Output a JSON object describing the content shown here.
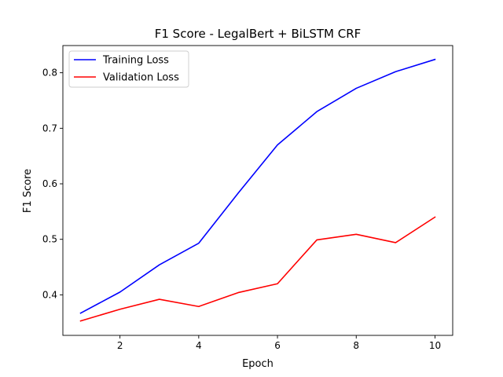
{
  "chart_data": {
    "type": "line",
    "title": "F1 Score - LegalBert + BiLSTM CRF",
    "xlabel": "Epoch",
    "ylabel": "F1 Score",
    "x": [
      1,
      2,
      3,
      4,
      5,
      6,
      7,
      8,
      9,
      10
    ],
    "xlim": [
      0.55,
      10.45
    ],
    "ylim": [
      0.327,
      0.849
    ],
    "xticks": [
      2,
      4,
      6,
      8,
      10
    ],
    "xtick_labels": [
      "2",
      "4",
      "6",
      "8",
      "10"
    ],
    "yticks": [
      0.4,
      0.5,
      0.6,
      0.7,
      0.8
    ],
    "ytick_labels": [
      "0.4",
      "0.5",
      "0.6",
      "0.7",
      "0.8"
    ],
    "grid": false,
    "legend_position": "top-left",
    "series": [
      {
        "name": "Training Loss",
        "color": "#0000ff",
        "values": [
          0.367,
          0.405,
          0.454,
          0.493,
          0.583,
          0.67,
          0.73,
          0.772,
          0.802,
          0.824
        ]
      },
      {
        "name": "Validation Loss",
        "color": "#ff0000",
        "values": [
          0.353,
          0.374,
          0.392,
          0.379,
          0.404,
          0.42,
          0.499,
          0.509,
          0.494,
          0.54
        ]
      }
    ]
  }
}
